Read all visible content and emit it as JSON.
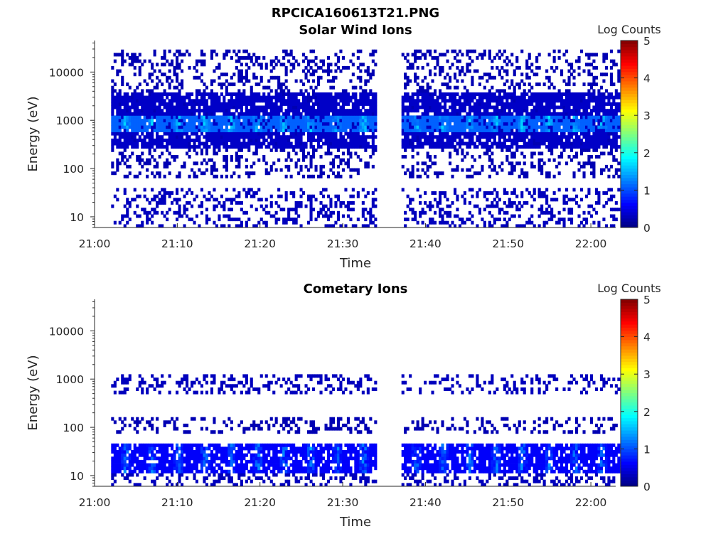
{
  "figure_title": "RPCICA160613T21.PNG",
  "chart_data": [
    {
      "type": "heatmap",
      "title": "Solar Wind Ions",
      "xlabel": "Time",
      "ylabel": "Energy (eV)",
      "yscale": "log",
      "xlim": [
        "21:00",
        "22:03"
      ],
      "ylim": [
        6,
        45000
      ],
      "x_ticks": [
        "21:00",
        "21:10",
        "21:20",
        "21:30",
        "21:40",
        "21:50",
        "22:00"
      ],
      "y_ticks": [
        "10",
        "100",
        "1000",
        "10000"
      ],
      "colorbar": {
        "label": "Log Counts",
        "range": [
          0,
          5
        ],
        "ticks": [
          "0",
          "1",
          "2",
          "3",
          "4",
          "5"
        ],
        "colormap": "jet"
      },
      "data_gap": [
        "21:34",
        "21:37"
      ],
      "data_window": [
        "21:02",
        "22:03"
      ],
      "bands": [
        {
          "e_min": 550,
          "e_max": 1300,
          "level": 1.1,
          "periodic_peaks_every_min": 3.2,
          "peak_level": 1.8
        },
        {
          "e_min": 250,
          "e_max": 4000,
          "level": 0.35
        },
        {
          "e_min": 60,
          "e_max": 30000,
          "level": 0.25,
          "sparse": true
        },
        {
          "e_min": 6,
          "e_max": 40,
          "level": 0.3,
          "sparse": true
        }
      ]
    },
    {
      "type": "heatmap",
      "title": "Cometary Ions",
      "xlabel": "Time",
      "ylabel": "Energy (eV)",
      "yscale": "log",
      "xlim": [
        "21:00",
        "22:03"
      ],
      "ylim": [
        6,
        45000
      ],
      "x_ticks": [
        "21:00",
        "21:10",
        "21:20",
        "21:30",
        "21:40",
        "21:50",
        "22:00"
      ],
      "y_ticks": [
        "10",
        "100",
        "1000",
        "10000"
      ],
      "colorbar": {
        "label": "Log Counts",
        "range": [
          0,
          5
        ],
        "ticks": [
          "0",
          "1",
          "2",
          "3",
          "4",
          "5"
        ],
        "colormap": "jet"
      },
      "data_gap": [
        "21:34",
        "21:37"
      ],
      "data_window": [
        "21:02",
        "22:03"
      ],
      "bands": [
        {
          "e_min": 12,
          "e_max": 50,
          "level": 0.6,
          "periodic_peaks_every_min": 3.2,
          "peak_level": 1.5
        },
        {
          "e_min": 500,
          "e_max": 1200,
          "level": 0.3,
          "sparse": true
        },
        {
          "e_min": 70,
          "e_max": 160,
          "level": 0.25,
          "sparse": true
        },
        {
          "e_min": 6,
          "e_max": 12,
          "level": 0.3,
          "sparse": true
        }
      ]
    }
  ]
}
